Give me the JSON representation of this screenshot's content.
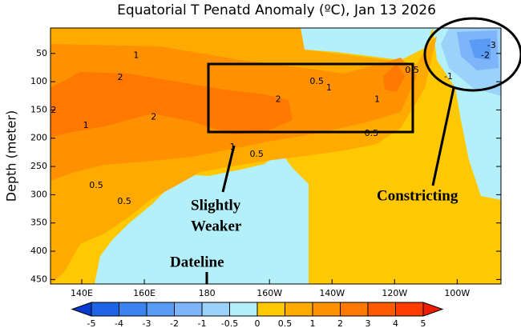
{
  "chart_data": {
    "type": "contour",
    "title": "Equatorial T Penatd Anomaly (ºC), Jan 13 2026",
    "y_label": "Depth (meter)",
    "xlim": [
      130,
      274
    ],
    "ylim": [
      5,
      458
    ],
    "y_inverted": true,
    "xticks": [
      {
        "value": 140,
        "label": "140E"
      },
      {
        "value": 160,
        "label": "160E"
      },
      {
        "value": 180,
        "label": "180"
      },
      {
        "value": 200,
        "label": "160W"
      },
      {
        "value": 220,
        "label": "140W"
      },
      {
        "value": 240,
        "label": "120W"
      },
      {
        "value": 260,
        "label": "100W"
      }
    ],
    "yticks": [
      50,
      100,
      150,
      200,
      250,
      300,
      350,
      400,
      450
    ],
    "contour_labels": [
      {
        "value": 1,
        "x": 157.4,
        "y": 54
      },
      {
        "value": 2,
        "x": 152.3,
        "y": 93
      },
      {
        "value": 2,
        "x": 131,
        "y": 151
      },
      {
        "value": 1,
        "x": 141.3,
        "y": 178
      },
      {
        "value": 2,
        "x": 163,
        "y": 163
      },
      {
        "value": 2,
        "x": 202.8,
        "y": 132
      },
      {
        "value": 0.5,
        "x": 215.1,
        "y": 100
      },
      {
        "value": 1,
        "x": 219,
        "y": 111
      },
      {
        "value": 1,
        "x": 234.4,
        "y": 132
      },
      {
        "value": 0.5,
        "x": 245.6,
        "y": 80
      },
      {
        "value": 0.5,
        "x": 232.6,
        "y": 192
      },
      {
        "value": 1,
        "x": 188.2,
        "y": 216
      },
      {
        "value": 0.5,
        "x": 195.9,
        "y": 229
      },
      {
        "value": 0.5,
        "x": 144.6,
        "y": 284
      },
      {
        "value": 0.5,
        "x": 153.6,
        "y": 312
      },
      {
        "value": -3,
        "x": 271,
        "y": 36
      },
      {
        "value": -2,
        "x": 269,
        "y": 54
      },
      {
        "value": -1,
        "x": 257.2,
        "y": 91
      }
    ],
    "colorbar": {
      "levels": [
        -5,
        -4,
        -3,
        -2,
        -1,
        -0.5,
        0,
        0.5,
        1,
        2,
        3,
        4,
        5
      ],
      "colors": [
        "#0a3cd2",
        "#1e64e6",
        "#3c82f0",
        "#5a9bf5",
        "#7db4fa",
        "#9bd2fa",
        "#b4f0fa",
        "#ffc800",
        "#ffaa00",
        "#ff9100",
        "#ff7800",
        "#ff5a00",
        "#ff3c00",
        "#f01e00"
      ]
    },
    "annotations": [
      "Slightly",
      "Weaker",
      "Constricting",
      "Dateline"
    ]
  }
}
